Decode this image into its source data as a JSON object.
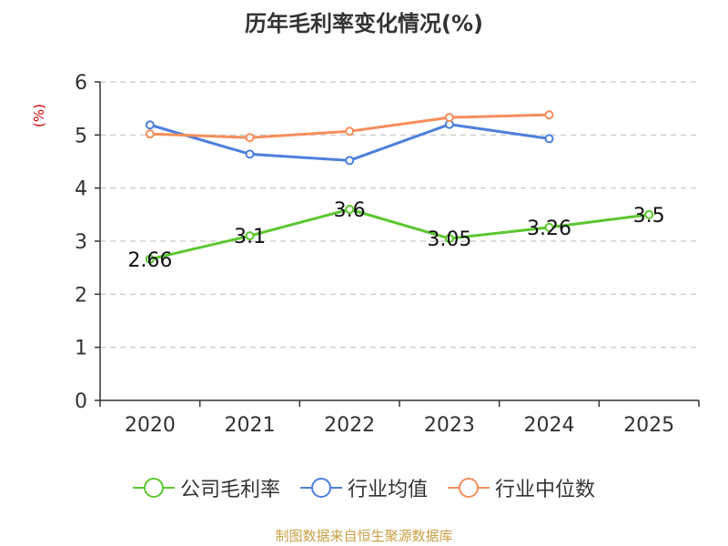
{
  "chart_data": {
    "type": "line",
    "title": "历年毛利率变化情况(%)",
    "ylabel": "(%)",
    "xlabel": "",
    "ylim": [
      0,
      6
    ],
    "yticks": [
      0,
      1,
      2,
      3,
      4,
      5,
      6
    ],
    "categories": [
      "2020",
      "2021",
      "2022",
      "2023",
      "2024",
      "2025"
    ],
    "grid": true,
    "legend_position": "bottom",
    "series": [
      {
        "name": "公司毛利率",
        "color": "#5cc72f",
        "values": [
          2.66,
          3.1,
          3.6,
          3.05,
          3.26,
          3.5
        ],
        "labels": [
          "2.66",
          "3.1",
          "3.6",
          "3.05",
          "3.26",
          "3.5"
        ]
      },
      {
        "name": "行业均值",
        "color": "#4e7fdc",
        "values": [
          5.19,
          4.64,
          4.52,
          5.2,
          4.93,
          null
        ]
      },
      {
        "name": "行业中位数",
        "color": "#f58e5b",
        "values": [
          5.02,
          4.95,
          5.07,
          5.33,
          5.38,
          null
        ]
      }
    ]
  },
  "source_note": "制图数据来自恒生聚源数据库"
}
